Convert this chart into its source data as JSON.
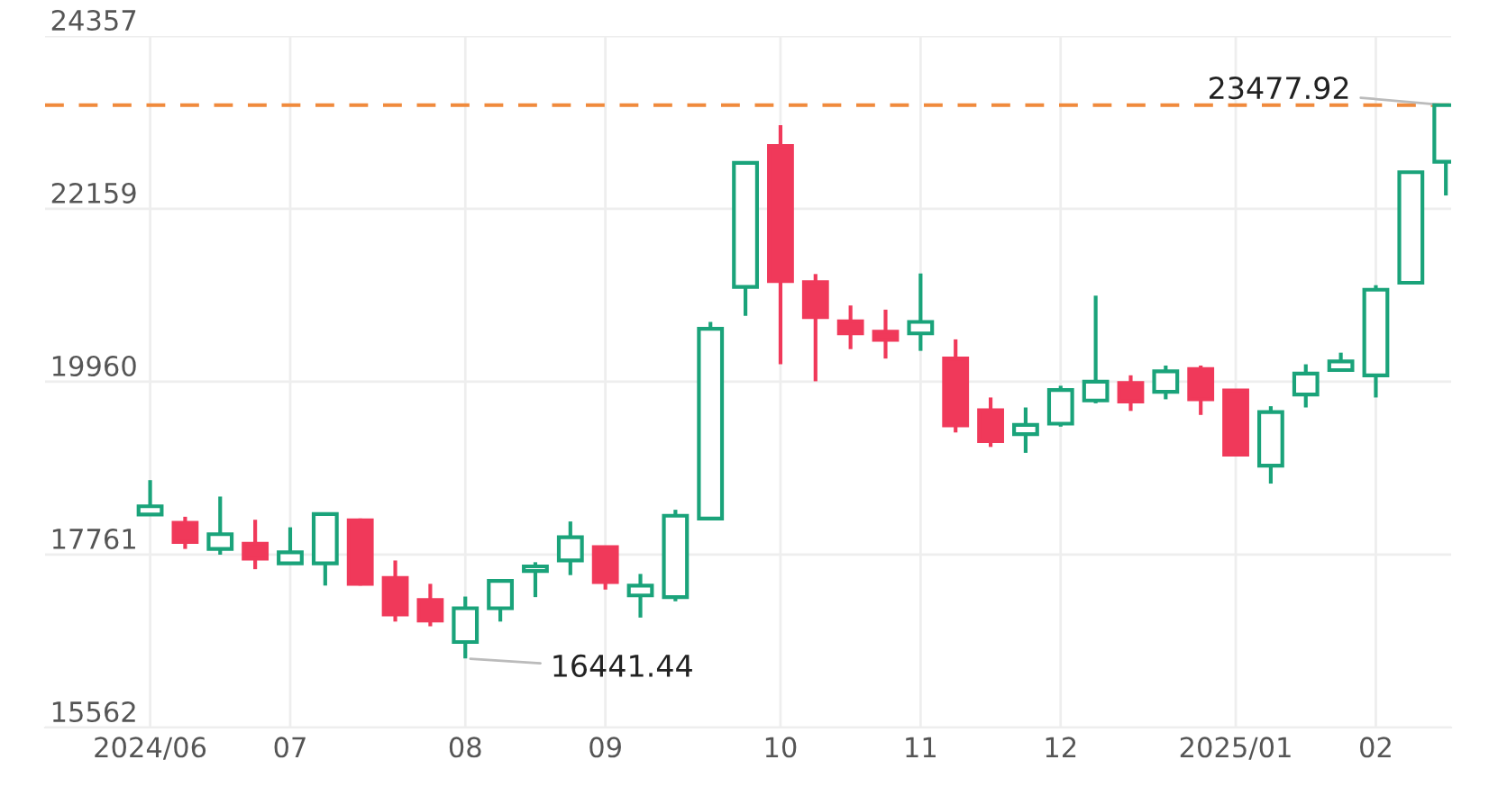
{
  "chart_data": {
    "type": "candlestick",
    "categories": [
      "2024/06",
      null,
      null,
      null,
      "07",
      null,
      null,
      null,
      null,
      "08",
      null,
      null,
      null,
      "09",
      null,
      null,
      null,
      null,
      "10",
      null,
      null,
      null,
      "11",
      null,
      null,
      null,
      "12",
      null,
      null,
      null,
      null,
      "2025/01",
      null,
      null,
      null,
      "02",
      null,
      null
    ],
    "ohlc": [
      [
        18272,
        18709,
        18272,
        18376
      ],
      [
        18167,
        18243,
        17834,
        17923
      ],
      [
        17834,
        18500,
        17761,
        18021
      ],
      [
        17901,
        18205,
        17576,
        17710
      ],
      [
        17650,
        18109,
        17650,
        17790
      ],
      [
        17650,
        18278,
        17368,
        18278
      ],
      [
        18198,
        18221,
        17368,
        17390
      ],
      [
        17465,
        17687,
        16910,
        16999
      ],
      [
        17183,
        17390,
        16850,
        16923
      ],
      [
        16650,
        17228,
        16441.44,
        17079
      ],
      [
        17079,
        17443,
        16910,
        17428
      ],
      [
        17554,
        17665,
        17221,
        17612
      ],
      [
        17687,
        18183,
        17501,
        17983
      ],
      [
        17856,
        17856,
        17317,
        17412
      ],
      [
        17243,
        17516,
        16961,
        17368
      ],
      [
        17221,
        18332,
        17168,
        18256
      ],
      [
        18221,
        20721,
        18221,
        20633
      ],
      [
        21166,
        22743,
        20797,
        22743
      ],
      [
        22958,
        23224,
        20182,
        21241
      ],
      [
        21226,
        21330,
        19966,
        20781
      ],
      [
        20730,
        20930,
        20375,
        20575
      ],
      [
        20597,
        20877,
        20255,
        20493
      ],
      [
        20575,
        21337,
        20353,
        20721
      ],
      [
        20255,
        20499,
        19315,
        19404
      ],
      [
        19598,
        19760,
        19131,
        19204
      ],
      [
        19293,
        19633,
        19056,
        19411
      ],
      [
        19427,
        19909,
        19389,
        19855
      ],
      [
        19722,
        21055,
        19686,
        19960
      ],
      [
        19944,
        20042,
        19589,
        19709
      ],
      [
        19833,
        20166,
        19737,
        20093
      ],
      [
        20122,
        20166,
        19538,
        19737
      ],
      [
        19849,
        19849,
        19033,
        19033
      ],
      [
        18894,
        19649,
        18665,
        19575
      ],
      [
        19797,
        20182,
        19633,
        20064
      ],
      [
        20108,
        20330,
        20108,
        20219
      ],
      [
        20042,
        21188,
        19760,
        21130
      ],
      [
        21219,
        22625,
        21219,
        22625
      ],
      [
        22758,
        23477.92,
        22329,
        23477.92
      ]
    ],
    "colors": [
      "#1aa37a",
      "#f0395a",
      "#1aa37a",
      "#f0395a",
      "#1aa37a",
      "#1aa37a",
      "#f0395a",
      "#f0395a",
      "#f0395a",
      "#1aa37a",
      "#1aa37a",
      "#1aa37a",
      "#1aa37a",
      "#f0395a",
      "#1aa37a",
      "#1aa37a",
      "#1aa37a",
      "#1aa37a",
      "#f0395a",
      "#f0395a",
      "#f0395a",
      "#f0395a",
      "#1aa37a",
      "#f0395a",
      "#f0395a",
      "#1aa37a",
      "#1aa37a",
      "#1aa37a",
      "#f0395a",
      "#1aa37a",
      "#f0395a",
      "#f0395a",
      "#1aa37a",
      "#1aa37a",
      "#1aa37a",
      "#1aa37a",
      "#1aa37a",
      "#1aa37a"
    ],
    "ylim": [
      15562,
      24357
    ],
    "yticks": [
      15562,
      17761,
      19960,
      22159,
      24357
    ],
    "grid": true,
    "ref_lines": [
      {
        "axis": "y",
        "value": 23477.92,
        "color": "#f08a3c",
        "line_style": "dashed"
      }
    ],
    "annotations": [
      {
        "text": "23477.92",
        "y": 23477.92
      },
      {
        "text": "16441.44",
        "x": "08",
        "y": 16441.44
      }
    ]
  }
}
